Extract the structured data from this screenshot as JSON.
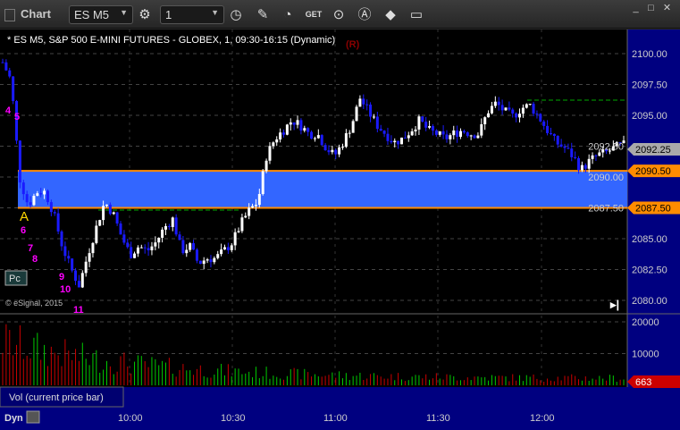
{
  "window": {
    "title": "Chart",
    "symbol": "ES M5",
    "interval": "1"
  },
  "toolbar": {
    "icons": [
      "settings-icon",
      "clock-icon",
      "pencil-icon",
      "study-icon",
      "get-icon",
      "play-icon",
      "alert-icon",
      "eraser-icon",
      "comment-icon"
    ]
  },
  "chart": {
    "header": "* ES M5, S&P 500 E-MINI FUTURES - GLOBEX, 1, 09:30-16:15 (Dynamic)",
    "marker": "(R)",
    "copyright": "© eSignal, 2015",
    "pc_label": "Pc",
    "vol_label": "Vol (current price bar)",
    "bottom_label": "Dyn",
    "colors": {
      "up": "#ffffff",
      "down": "#1a1aff",
      "zone": "#3366ff",
      "zone_line": "#ff8c00",
      "axis_bg": "#000080",
      "vol_up": "#00cc00",
      "vol_down": "#cc0000"
    }
  },
  "chart_data": {
    "type": "candlestick",
    "price_ticks": [
      "2100.00",
      "2097.50",
      "2095.00",
      "2092.50",
      "2090.00",
      "2087.50",
      "2085.00",
      "2082.50",
      "2080.00"
    ],
    "price_range": [
      2080,
      2100
    ],
    "time_ticks": [
      "10:00",
      "10:30",
      "11:00",
      "11:30",
      "12:00"
    ],
    "last_price": "2092.25",
    "zone": {
      "top": "2090.50",
      "bottom": "2087.50"
    },
    "close_samples": [
      2099.3,
      2097.8,
      2089.9,
      2087.7,
      2088.8,
      2088.8,
      2087,
      2084.4,
      2082.6,
      2081.2,
      2083.7,
      2085.9,
      2088,
      2087,
      2085.1,
      2083.7,
      2084.4,
      2084,
      2084.7,
      2085.9,
      2086.6,
      2084,
      2084.4,
      2083,
      2083.4,
      2083.4,
      2084,
      2084.7,
      2086.2,
      2087.3,
      2088,
      2091.7,
      2093.1,
      2093.8,
      2094.6,
      2094.2,
      2093.5,
      2093.5,
      2092.4,
      2091.7,
      2092.8,
      2094.2,
      2096.4,
      2095.3,
      2094.2,
      2093.5,
      2092.8,
      2093.1,
      2093.8,
      2094.6,
      2093.8,
      2093.5,
      2093.1,
      2093.5,
      2093.8,
      2093.5,
      2093.5,
      2095.3,
      2096,
      2095.3,
      2094.9,
      2095.6,
      2095.8,
      2094.9,
      2093.8,
      2092.8,
      2092.4,
      2091.7,
      2090.6,
      2091.3,
      2091.8,
      2092,
      2092.4,
      2092.6
    ],
    "volume_ticks": [
      "20000",
      "10000"
    ],
    "volume_last": "663",
    "annotations_magenta": [
      "4",
      "5",
      "6",
      "7",
      "8",
      "9",
      "10",
      "11"
    ],
    "annotation_yellow": "A"
  }
}
